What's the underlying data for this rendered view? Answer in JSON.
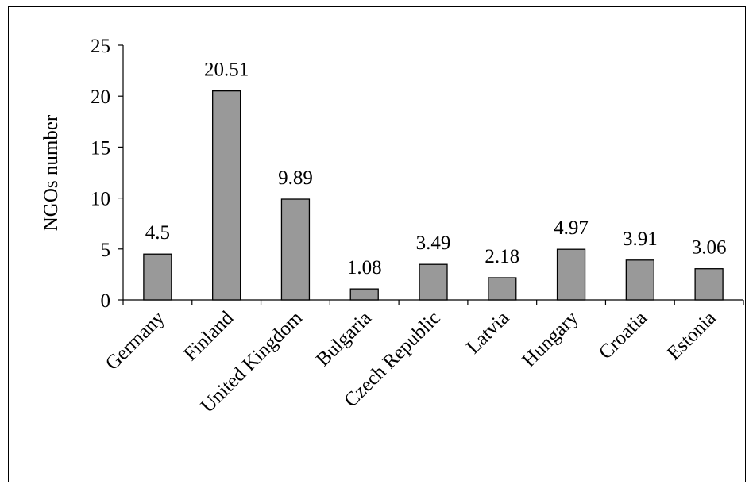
{
  "chart_data": {
    "type": "bar",
    "title": "",
    "xlabel": "",
    "ylabel": "NGOs number",
    "categories": [
      "Germany",
      "Finland",
      "United Kingdom",
      "Bulgaria",
      "Czech Republic",
      "Latvia",
      "Hungary",
      "Croatia",
      "Estonia"
    ],
    "values": [
      4.5,
      20.51,
      9.89,
      1.08,
      3.49,
      2.18,
      4.97,
      3.91,
      3.06
    ],
    "data_labels": [
      "4.5",
      "20.51",
      "9.89",
      "1.08",
      "3.49",
      "2.18",
      "4.97",
      "3.91",
      "3.06"
    ],
    "ylim": [
      0,
      25
    ],
    "yticks": [
      "0",
      "5",
      "10",
      "15",
      "20",
      "25"
    ],
    "grid": false,
    "legend": "none",
    "colors": {
      "bar_fill": "#999999",
      "bar_stroke": "#000000",
      "axis": "#000000",
      "text": "#000000"
    }
  }
}
